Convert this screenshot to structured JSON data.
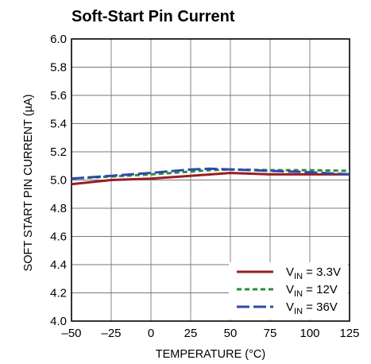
{
  "chart_data": {
    "type": "line",
    "title": "Soft-Start Pin Current",
    "xlabel": "TEMPERATURE (°C)",
    "ylabel": "SOFT START PIN CURRENT (µA)",
    "xlim": [
      -50,
      125
    ],
    "ylim": [
      4.0,
      6.0
    ],
    "xticks": [
      "–50",
      "–25",
      "0",
      "25",
      "50",
      "75",
      "100",
      "125"
    ],
    "xtick_values": [
      -50,
      -25,
      0,
      25,
      50,
      75,
      100,
      125
    ],
    "yticks": [
      "6.0",
      "5.8",
      "5.6",
      "5.4",
      "5.2",
      "5.0",
      "4.8",
      "4.6",
      "4.4",
      "4.2",
      "4.0"
    ],
    "ytick_values": [
      6.0,
      5.8,
      5.6,
      5.4,
      5.2,
      5.0,
      4.8,
      4.6,
      4.4,
      4.2,
      4.0
    ],
    "grid": true,
    "legend_position": "bottom-right",
    "series": [
      {
        "name": "V",
        "name_sub": "IN",
        "name_rest": " = 3.3V",
        "color": "#9b1c24",
        "dash": "solid",
        "x": [
          -50,
          -25,
          0,
          25,
          50,
          75,
          100,
          125
        ],
        "y": [
          4.97,
          5.0,
          5.01,
          5.03,
          5.05,
          5.04,
          5.04,
          5.04
        ]
      },
      {
        "name": "V",
        "name_sub": "IN",
        "name_rest": " = 12V",
        "color": "#2e8b3a",
        "dash": "dashed-short",
        "x": [
          -50,
          -25,
          0,
          25,
          37,
          50,
          75,
          100,
          125
        ],
        "y": [
          5.01,
          5.025,
          5.04,
          5.06,
          5.07,
          5.075,
          5.07,
          5.07,
          5.065
        ]
      },
      {
        "name": "V",
        "name_sub": "IN",
        "name_rest": " = 36V",
        "color": "#2f4aa8",
        "dash": "dashed-long",
        "x": [
          -50,
          -25,
          0,
          25,
          37,
          50,
          75,
          100,
          125
        ],
        "y": [
          5.01,
          5.03,
          5.05,
          5.075,
          5.08,
          5.075,
          5.065,
          5.055,
          5.04
        ]
      }
    ]
  }
}
